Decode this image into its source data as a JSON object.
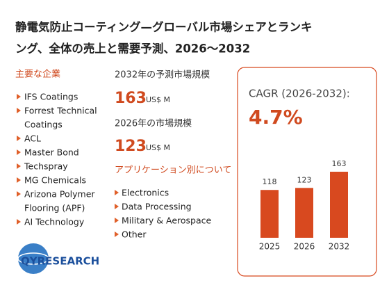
{
  "header": {
    "title_line1": "静電気防止コーティング—グローバル市場シェアとランキ",
    "title_line2": "ング、全体の売上と需要予測、2026～2032"
  },
  "companies": {
    "heading": "主要な企業",
    "items": [
      [
        "IFS Coatings"
      ],
      [
        "Forrest Technical",
        "Coatings"
      ],
      [
        "ACL"
      ],
      [
        "Master Bond"
      ],
      [
        "Techspray"
      ],
      [
        "MG Chemicals"
      ],
      [
        "Arizona Polymer",
        "Flooring (APF)"
      ],
      [
        "AI Technology"
      ]
    ]
  },
  "market": {
    "forecast_label": "2032年の予測市場規模",
    "forecast_value": "163",
    "forecast_unit": "US$ M",
    "current_label": "2026年の市場規模",
    "current_value": "123",
    "current_unit": "US$ M"
  },
  "applications": {
    "heading": "アプリケーション別について",
    "items": [
      "Electronics",
      "Data Processing",
      "Military & Aerospace",
      "Other"
    ]
  },
  "cagr": {
    "label": "CAGR (2026-2032):",
    "value": "4.7%"
  },
  "logo": {
    "text": "QYRESEARCH"
  },
  "chart_data": {
    "type": "bar",
    "categories": [
      "2025",
      "2026",
      "2032"
    ],
    "values": [
      118,
      123,
      163
    ],
    "color": "#d8491f"
  }
}
